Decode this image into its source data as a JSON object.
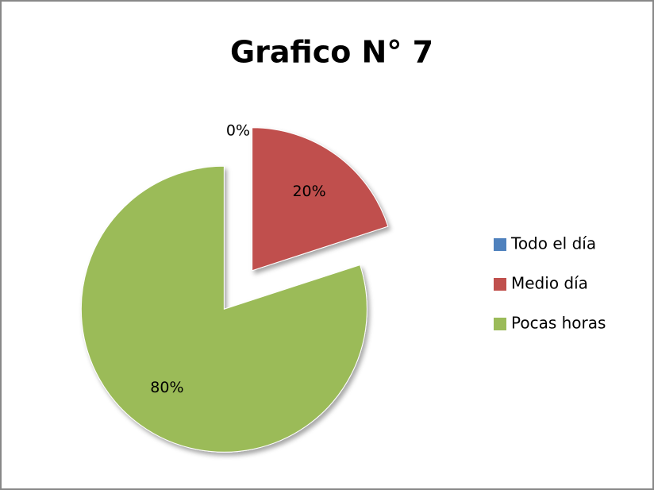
{
  "chart_data": {
    "type": "pie",
    "title": "Grafico N° 7",
    "categories": [
      "Todo el día",
      "Medio día",
      "Pocas horas"
    ],
    "values": [
      0,
      20,
      80
    ],
    "value_labels": [
      "0%",
      "20%",
      "80%"
    ],
    "colors": [
      "#4f81bd",
      "#c0504d",
      "#9bbb59"
    ],
    "legend": "right"
  }
}
